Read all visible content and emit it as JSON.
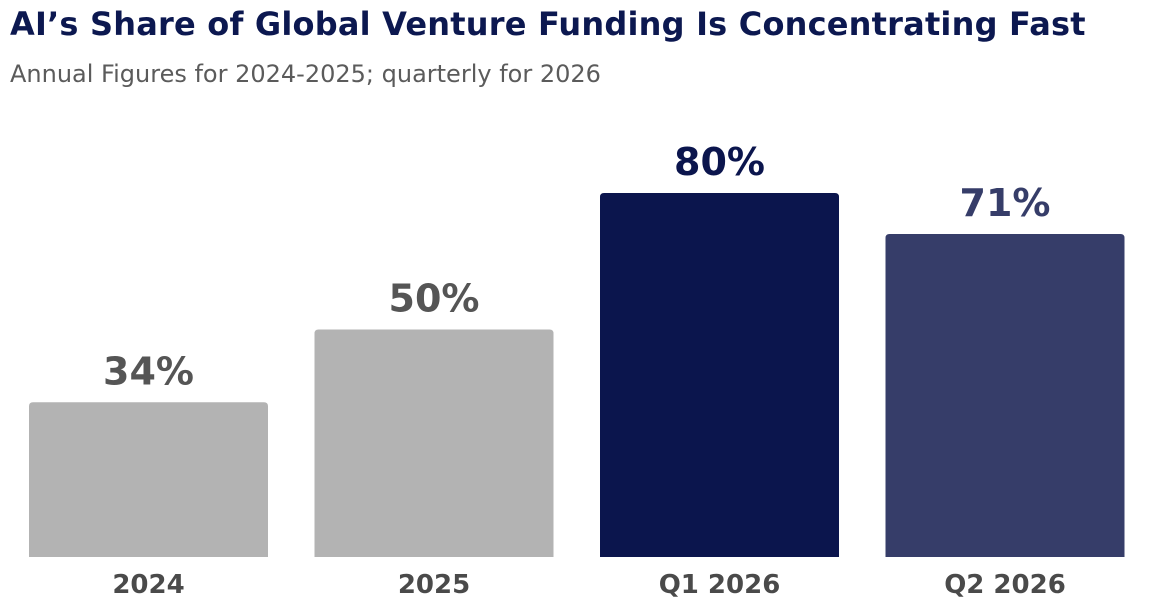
{
  "header": {
    "title": "AI’s Share of Global Venture Funding Is Concentrating Fast",
    "subtitle": "Annual Figures for 2024-2025; quarterly for 2026"
  },
  "colors": {
    "gray_bar": "#b3b3b3",
    "dark_navy": "#0b154d",
    "mid_navy": "#363d69",
    "gray_label": "#555555",
    "category_label": "#4a4a4a"
  },
  "chart_data": {
    "type": "bar",
    "title": "AI’s Share of Global Venture Funding Is Concentrating Fast",
    "subtitle": "Annual Figures for 2024-2025; quarterly for 2026",
    "categories": [
      "2024",
      "2025",
      "Q1 2026",
      "Q2 2026"
    ],
    "values": [
      34,
      50,
      80,
      71
    ],
    "value_labels": [
      "34%",
      "50%",
      "80%",
      "71%"
    ],
    "bar_colors": [
      "#b3b3b3",
      "#b3b3b3",
      "#0b154d",
      "#363d69"
    ],
    "label_colors": [
      "#555555",
      "#555555",
      "#0b154d",
      "#363d69"
    ],
    "unit": "%",
    "xlabel": "",
    "ylabel": "",
    "ylim": [
      0,
      80
    ],
    "grid": false,
    "legend": "none"
  }
}
